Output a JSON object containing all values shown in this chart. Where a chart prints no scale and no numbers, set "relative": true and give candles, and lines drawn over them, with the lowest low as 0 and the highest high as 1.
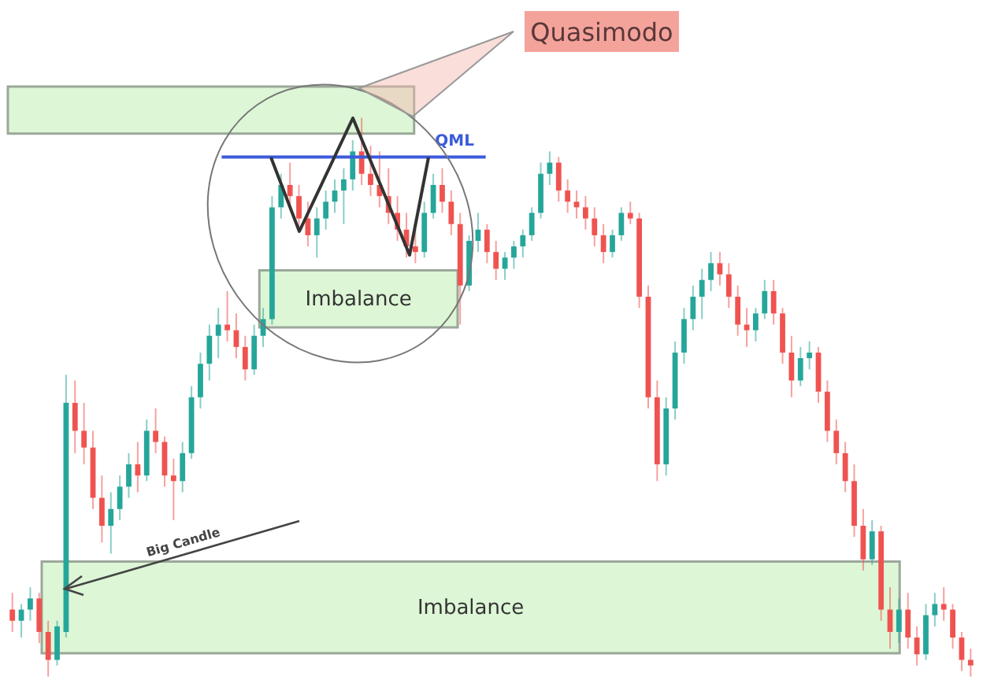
{
  "chart_data": {
    "type": "candlestick",
    "relative": true,
    "categories": [
      null,
      null,
      null,
      null,
      null,
      null,
      null,
      null,
      null,
      null,
      null,
      null,
      null,
      null,
      null,
      null,
      null,
      null,
      null,
      null,
      null,
      null,
      null,
      null,
      null,
      null,
      null,
      null,
      null,
      null,
      null,
      null,
      null,
      null,
      null,
      null,
      null,
      null,
      null,
      null,
      null,
      null,
      null,
      null,
      null,
      null,
      null,
      null,
      null,
      null,
      null,
      null,
      null,
      null,
      null,
      null,
      null,
      null,
      null,
      null,
      null,
      null,
      null,
      null,
      null,
      null,
      null,
      null,
      null,
      null,
      null,
      null,
      null,
      null,
      null,
      null,
      null,
      null,
      null,
      null,
      null,
      null,
      null,
      null,
      null,
      null,
      null,
      null,
      null,
      null,
      null,
      null,
      null,
      null,
      null,
      null,
      null,
      null,
      null,
      null,
      null,
      null,
      null,
      null,
      null,
      null,
      null,
      null
    ],
    "ohlc": [
      [
        0.12,
        0.15,
        0.08,
        0.1
      ],
      [
        0.1,
        0.13,
        0.07,
        0.12
      ],
      [
        0.12,
        0.16,
        0.1,
        0.14
      ],
      [
        0.14,
        0.15,
        0.06,
        0.08
      ],
      [
        0.08,
        0.1,
        0.0,
        0.03
      ],
      [
        0.03,
        0.1,
        0.02,
        0.09
      ],
      [
        0.08,
        0.54,
        0.07,
        0.49
      ],
      [
        0.49,
        0.53,
        0.4,
        0.44
      ],
      [
        0.44,
        0.49,
        0.38,
        0.41
      ],
      [
        0.41,
        0.44,
        0.3,
        0.32
      ],
      [
        0.32,
        0.36,
        0.24,
        0.27
      ],
      [
        0.27,
        0.33,
        0.22,
        0.3
      ],
      [
        0.3,
        0.36,
        0.28,
        0.34
      ],
      [
        0.34,
        0.4,
        0.32,
        0.38
      ],
      [
        0.38,
        0.42,
        0.33,
        0.36
      ],
      [
        0.36,
        0.46,
        0.35,
        0.44
      ],
      [
        0.44,
        0.48,
        0.4,
        0.42
      ],
      [
        0.42,
        0.43,
        0.34,
        0.36
      ],
      [
        0.36,
        0.39,
        0.28,
        0.35
      ],
      [
        0.35,
        0.42,
        0.33,
        0.4
      ],
      [
        0.4,
        0.52,
        0.39,
        0.5
      ],
      [
        0.5,
        0.58,
        0.48,
        0.56
      ],
      [
        0.56,
        0.63,
        0.53,
        0.61
      ],
      [
        0.61,
        0.66,
        0.57,
        0.63
      ],
      [
        0.63,
        0.69,
        0.6,
        0.62
      ],
      [
        0.62,
        0.65,
        0.57,
        0.59
      ],
      [
        0.59,
        0.61,
        0.53,
        0.55
      ],
      [
        0.55,
        0.63,
        0.54,
        0.61
      ],
      [
        0.61,
        0.66,
        0.59,
        0.64
      ],
      [
        0.64,
        0.86,
        0.63,
        0.84
      ],
      [
        0.84,
        0.9,
        0.82,
        0.88
      ],
      [
        0.88,
        0.92,
        0.84,
        0.86
      ],
      [
        0.86,
        0.88,
        0.8,
        0.82
      ],
      [
        0.82,
        0.85,
        0.77,
        0.79
      ],
      [
        0.79,
        0.84,
        0.75,
        0.82
      ],
      [
        0.82,
        0.87,
        0.8,
        0.85
      ],
      [
        0.85,
        0.89,
        0.83,
        0.87
      ],
      [
        0.87,
        0.91,
        0.81,
        0.89
      ],
      [
        0.89,
        0.96,
        0.87,
        0.94
      ],
      [
        0.94,
        1.0,
        0.88,
        0.9
      ],
      [
        0.9,
        0.95,
        0.86,
        0.88
      ],
      [
        0.88,
        0.94,
        0.84,
        0.86
      ],
      [
        0.86,
        0.91,
        0.81,
        0.83
      ],
      [
        0.83,
        0.86,
        0.78,
        0.8
      ],
      [
        0.8,
        0.83,
        0.75,
        0.77
      ],
      [
        0.77,
        0.8,
        0.74,
        0.76
      ],
      [
        0.76,
        0.85,
        0.75,
        0.83
      ],
      [
        0.83,
        0.9,
        0.82,
        0.88
      ],
      [
        0.88,
        0.91,
        0.83,
        0.85
      ],
      [
        0.85,
        0.87,
        0.79,
        0.81
      ],
      [
        0.81,
        0.83,
        0.63,
        0.7
      ],
      [
        0.7,
        0.79,
        0.69,
        0.78
      ],
      [
        0.78,
        0.83,
        0.76,
        0.8
      ],
      [
        0.8,
        0.81,
        0.74,
        0.76
      ],
      [
        0.76,
        0.78,
        0.71,
        0.73
      ],
      [
        0.73,
        0.76,
        0.71,
        0.75
      ],
      [
        0.75,
        0.78,
        0.73,
        0.77
      ],
      [
        0.77,
        0.8,
        0.75,
        0.79
      ],
      [
        0.79,
        0.84,
        0.78,
        0.83
      ],
      [
        0.83,
        0.92,
        0.82,
        0.9
      ],
      [
        0.9,
        0.94,
        0.88,
        0.92
      ],
      [
        0.92,
        0.93,
        0.85,
        0.87
      ],
      [
        0.87,
        0.89,
        0.83,
        0.85
      ],
      [
        0.85,
        0.87,
        0.82,
        0.84
      ],
      [
        0.84,
        0.86,
        0.8,
        0.82
      ],
      [
        0.82,
        0.84,
        0.77,
        0.79
      ],
      [
        0.79,
        0.81,
        0.74,
        0.76
      ],
      [
        0.76,
        0.8,
        0.75,
        0.79
      ],
      [
        0.79,
        0.84,
        0.78,
        0.83
      ],
      [
        0.83,
        0.85,
        0.81,
        0.82
      ],
      [
        0.82,
        0.83,
        0.66,
        0.68
      ],
      [
        0.68,
        0.7,
        0.48,
        0.5
      ],
      [
        0.5,
        0.53,
        0.35,
        0.38
      ],
      [
        0.38,
        0.5,
        0.36,
        0.48
      ],
      [
        0.48,
        0.6,
        0.46,
        0.58
      ],
      [
        0.58,
        0.66,
        0.56,
        0.64
      ],
      [
        0.64,
        0.7,
        0.62,
        0.68
      ],
      [
        0.68,
        0.73,
        0.64,
        0.71
      ],
      [
        0.71,
        0.76,
        0.69,
        0.74
      ],
      [
        0.74,
        0.76,
        0.7,
        0.72
      ],
      [
        0.72,
        0.74,
        0.66,
        0.68
      ],
      [
        0.68,
        0.7,
        0.61,
        0.63
      ],
      [
        0.63,
        0.66,
        0.59,
        0.62
      ],
      [
        0.62,
        0.66,
        0.6,
        0.65
      ],
      [
        0.65,
        0.71,
        0.64,
        0.69
      ],
      [
        0.69,
        0.71,
        0.63,
        0.65
      ],
      [
        0.65,
        0.66,
        0.56,
        0.58
      ],
      [
        0.58,
        0.61,
        0.5,
        0.53
      ],
      [
        0.53,
        0.59,
        0.52,
        0.57
      ],
      [
        0.57,
        0.6,
        0.55,
        0.58
      ],
      [
        0.58,
        0.59,
        0.49,
        0.51
      ],
      [
        0.51,
        0.53,
        0.42,
        0.44
      ],
      [
        0.44,
        0.46,
        0.38,
        0.4
      ],
      [
        0.4,
        0.42,
        0.33,
        0.35
      ],
      [
        0.35,
        0.38,
        0.25,
        0.27
      ],
      [
        0.27,
        0.3,
        0.19,
        0.21
      ],
      [
        0.21,
        0.28,
        0.2,
        0.26
      ],
      [
        0.26,
        0.27,
        0.1,
        0.12
      ],
      [
        0.12,
        0.16,
        0.05,
        0.08
      ],
      [
        0.08,
        0.14,
        0.06,
        0.12
      ],
      [
        0.12,
        0.15,
        0.05,
        0.07
      ],
      [
        0.07,
        0.09,
        0.02,
        0.04
      ],
      [
        0.04,
        0.13,
        0.03,
        0.11
      ],
      [
        0.11,
        0.15,
        0.09,
        0.13
      ],
      [
        0.13,
        0.16,
        0.1,
        0.12
      ],
      [
        0.12,
        0.13,
        0.05,
        0.07
      ],
      [
        0.07,
        0.08,
        0.01,
        0.03
      ],
      [
        0.03,
        0.05,
        0.0,
        0.02
      ]
    ],
    "colors": [
      "#ef5350",
      "#26a69a",
      "#26a69a",
      "#ef5350",
      "#ef5350",
      "#26a69a",
      "#26a69a",
      "#ef5350",
      "#ef5350",
      "#ef5350",
      "#ef5350",
      "#26a69a",
      "#26a69a",
      "#26a69a",
      "#ef5350",
      "#26a69a",
      "#ef5350",
      "#ef5350",
      "#ef5350",
      "#26a69a",
      "#26a69a",
      "#26a69a",
      "#26a69a",
      "#26a69a",
      "#ef5350",
      "#ef5350",
      "#ef5350",
      "#26a69a",
      "#26a69a",
      "#26a69a",
      "#26a69a",
      "#ef5350",
      "#ef5350",
      "#ef5350",
      "#26a69a",
      "#26a69a",
      "#26a69a",
      "#26a69a",
      "#26a69a",
      "#ef5350",
      "#ef5350",
      "#ef5350",
      "#ef5350",
      "#ef5350",
      "#ef5350",
      "#ef5350",
      "#26a69a",
      "#26a69a",
      "#ef5350",
      "#ef5350",
      "#ef5350",
      "#26a69a",
      "#26a69a",
      "#ef5350",
      "#ef5350",
      "#26a69a",
      "#26a69a",
      "#26a69a",
      "#26a69a",
      "#26a69a",
      "#26a69a",
      "#ef5350",
      "#ef5350",
      "#ef5350",
      "#ef5350",
      "#ef5350",
      "#ef5350",
      "#26a69a",
      "#26a69a",
      "#ef5350",
      "#ef5350",
      "#ef5350",
      "#ef5350",
      "#26a69a",
      "#26a69a",
      "#26a69a",
      "#26a69a",
      "#26a69a",
      "#26a69a",
      "#ef5350",
      "#ef5350",
      "#ef5350",
      "#ef5350",
      "#26a69a",
      "#26a69a",
      "#ef5350",
      "#ef5350",
      "#ef5350",
      "#26a69a",
      "#26a69a",
      "#ef5350",
      "#ef5350",
      "#ef5350",
      "#ef5350",
      "#ef5350",
      "#ef5350",
      "#26a69a",
      "#ef5350",
      "#ef5350",
      "#26a69a",
      "#ef5350",
      "#ef5350",
      "#26a69a",
      "#26a69a",
      "#ef5350",
      "#ef5350",
      "#ef5350",
      "#ef5350"
    ],
    "bands": [
      {
        "axis": "y",
        "from": 0.972,
        "to": 1.056,
        "color": "#d8f5d0"
      },
      {
        "axis": "y",
        "from": 0.625,
        "to": 0.727,
        "label": "Imbalance",
        "color": "#d8f5d0"
      },
      {
        "axis": "y",
        "from": 0.042,
        "to": 0.206,
        "label": "Imbalance",
        "color": "#d8f5d0"
      }
    ],
    "ref_lines": [
      {
        "axis": "y",
        "value": 0.93,
        "label": "QML",
        "color": "#3b5bdb"
      }
    ],
    "annotations": [
      "Quasimodo",
      "Big Candle"
    ]
  }
}
